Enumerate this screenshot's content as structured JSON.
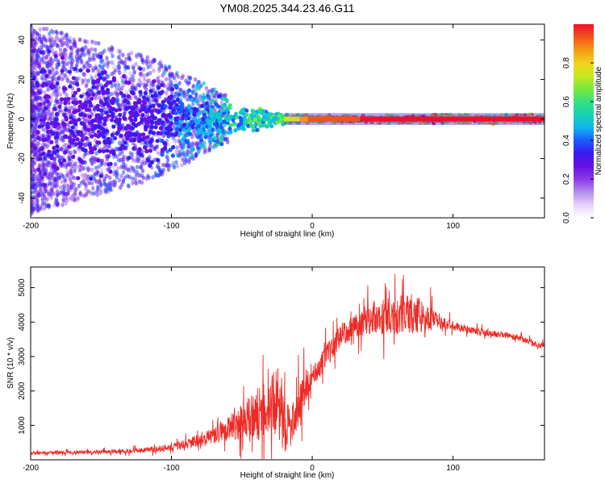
{
  "title": "YM08.2025.344.23.46.G11",
  "colors": {
    "background": "#ffffff",
    "axis": "#000000",
    "snr_line": "#ee2a24",
    "colormap": [
      "#ffffff",
      "#e6d2f8",
      "#b48cee",
      "#8a3ae6",
      "#6a10e2",
      "#3a1af2",
      "#1a5cff",
      "#10b6ee",
      "#18d2b2",
      "#36e27e",
      "#7ae83c",
      "#c6e81e",
      "#f2d21a",
      "#f49a14",
      "#f4541a",
      "#ee1030"
    ]
  },
  "chart_data": [
    {
      "type": "heatmap",
      "title": "YM08.2025.344.23.46.G11",
      "xlabel": "Height of straight line (km)",
      "ylabel": "Frequency (Hz)",
      "xlim": [
        -200,
        165
      ],
      "ylim": [
        -50,
        48
      ],
      "xticks": [
        -200,
        -100,
        0,
        100
      ],
      "yticks": [
        -40,
        -20,
        0,
        20,
        40
      ],
      "colorbar": {
        "label": "Normalized spectral amplitude",
        "range": [
          0,
          1
        ],
        "ticks": [
          0.0,
          0.2,
          0.4,
          0.6,
          0.8
        ]
      },
      "description_points": [
        {
          "x": -200,
          "scatter_spread_hz": 48,
          "peak_amplitude": 0.25
        },
        {
          "x": -110,
          "scatter_spread_hz": 30,
          "peak_amplitude": 0.3
        },
        {
          "x": -60,
          "scatter_spread_hz": 12,
          "peak_amplitude": 0.55
        },
        {
          "x": -20,
          "scatter_spread_hz": 4,
          "peak_amplitude": 0.7
        },
        {
          "x": 0,
          "scatter_spread_hz": 2,
          "peak_amplitude": 0.95
        },
        {
          "x": 100,
          "scatter_spread_hz": 3,
          "peak_amplitude": 1.0
        },
        {
          "x": 165,
          "scatter_spread_hz": 3,
          "peak_amplitude": 1.0
        }
      ]
    },
    {
      "type": "line",
      "xlabel": "Height of straight line (km)",
      "ylabel": "SNR (10 * v/v)",
      "xlim": [
        -200,
        165
      ],
      "ylim": [
        0,
        5600
      ],
      "xticks": [
        -200,
        -100,
        0,
        100
      ],
      "yticks": [
        1000,
        2000,
        3000,
        4000,
        5000
      ],
      "series": [
        {
          "name": "SNR",
          "x": [
            -200,
            -180,
            -160,
            -140,
            -120,
            -100,
            -90,
            -80,
            -70,
            -60,
            -50,
            -40,
            -30,
            -25,
            -20,
            -15,
            -10,
            -5,
            0,
            5,
            10,
            20,
            30,
            40,
            50,
            60,
            70,
            80,
            90,
            100,
            110,
            120,
            130,
            140,
            150,
            160,
            165
          ],
          "values": [
            200,
            210,
            220,
            240,
            280,
            360,
            450,
            560,
            700,
            900,
            1100,
            1300,
            1500,
            1700,
            1200,
            900,
            1600,
            2100,
            2500,
            2700,
            3000,
            3600,
            3900,
            4100,
            4150,
            4200,
            4250,
            4200,
            4000,
            3900,
            3800,
            3700,
            3650,
            3600,
            3500,
            3350,
            3300
          ],
          "noise": [
            60,
            60,
            70,
            80,
            100,
            150,
            200,
            300,
            350,
            500,
            700,
            1100,
            1200,
            1500,
            1400,
            800,
            900,
            700,
            500,
            500,
            500,
            450,
            500,
            650,
            750,
            800,
            850,
            700,
            250,
            200,
            150,
            150,
            130,
            120,
            120,
            120,
            120
          ]
        }
      ]
    }
  ]
}
